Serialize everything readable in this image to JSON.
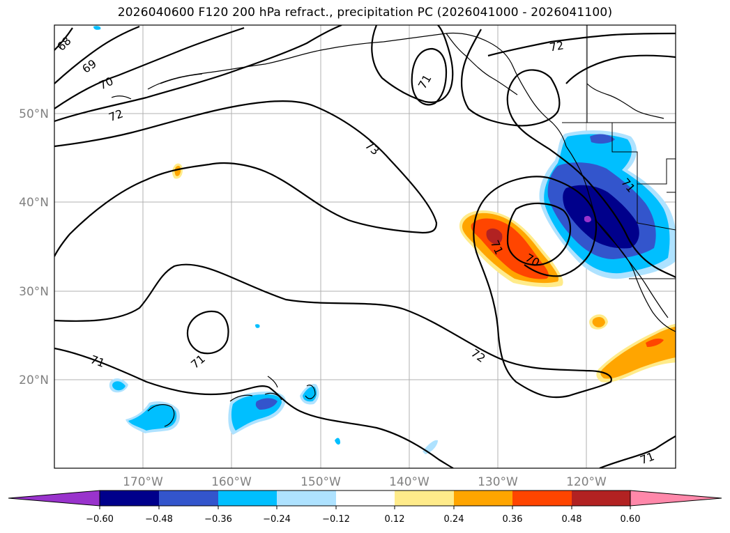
{
  "title": "2026040600 F120 200 hPa refract., precipitation PC (2026041000 - 2026041100)",
  "latitudes": [
    "50°N",
    "40°N",
    "30°N",
    "20°N"
  ],
  "longitudes": [
    "170°W",
    "160°W",
    "150°W",
    "140°W",
    "130°W",
    "120°W"
  ],
  "contour_labels": [
    "68",
    "69",
    "70",
    "72",
    "73",
    "71",
    "72",
    "71",
    "71",
    "72",
    "71",
    "70",
    "71",
    "71"
  ],
  "colorbar": {
    "ticks": [
      "−0.60",
      "−0.48",
      "−0.36",
      "−0.24",
      "−0.12",
      "0.12",
      "0.24",
      "0.36",
      "0.48",
      "0.60"
    ],
    "colors": [
      "#9933cc",
      "#00008b",
      "#3355cc",
      "#00bfff",
      "#aee2ff",
      "#ffffff",
      "#ffeb8a",
      "#ffa500",
      "#ff4500",
      "#b22222",
      "#ff88aa"
    ]
  }
}
